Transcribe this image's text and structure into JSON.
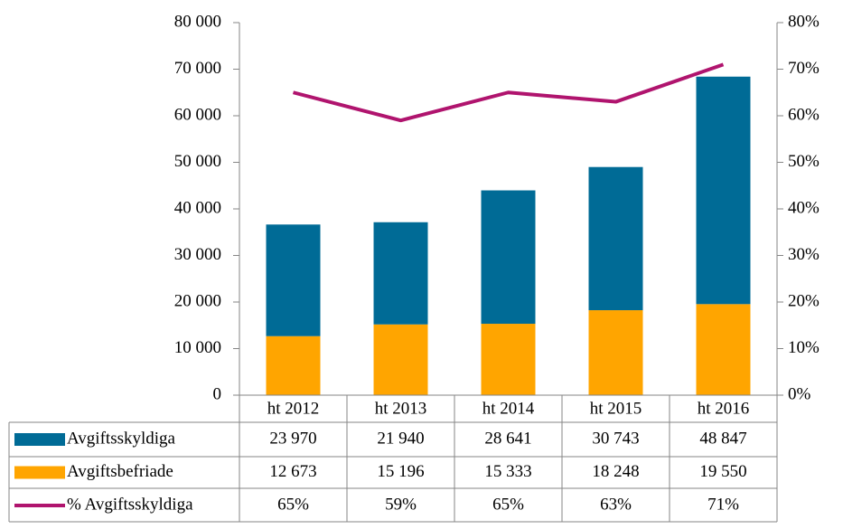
{
  "chart_data": {
    "type": "bar",
    "categories": [
      "ht 2012",
      "ht 2013",
      "ht 2014",
      "ht 2015",
      "ht 2016"
    ],
    "series": [
      {
        "name": "Avgiftsskyldiga",
        "color": "#006b96",
        "values": [
          23970,
          21940,
          28641,
          30743,
          48847
        ],
        "value_labels": [
          "23 970",
          "21 940",
          "28 641",
          "30 743",
          "48 847"
        ]
      },
      {
        "name": "Avgiftsbefriade",
        "color": "#ffa500",
        "values": [
          12673,
          15196,
          15333,
          18248,
          19550
        ],
        "value_labels": [
          "12 673",
          "15 196",
          "15 333",
          "18 248",
          "19 550"
        ]
      },
      {
        "name": "% Avgiftsskyldiga",
        "color": "#b0146e",
        "type": "line",
        "axis": "y2",
        "values": [
          65,
          59,
          65,
          63,
          71
        ],
        "value_labels": [
          "65%",
          "59%",
          "65%",
          "63%",
          "71%"
        ]
      }
    ],
    "ylim": [
      0,
      80000
    ],
    "yticks": [
      0,
      {
        "value": 10000,
        "label": "10 000"
      },
      {
        "value": 20000,
        "label": "20 000"
      },
      {
        "value": 30000,
        "label": "30 000"
      },
      {
        "value": 40000,
        "label": "40 000"
      },
      {
        "value": 50000,
        "label": "50 000"
      },
      {
        "value": 60000,
        "label": "60 000"
      },
      {
        "value": 70000,
        "label": "70 000"
      },
      {
        "value": 80000,
        "label": "80 000"
      }
    ],
    "y2lim": [
      0,
      80
    ],
    "y2ticks": [
      {
        "value": 0,
        "label": "0%"
      },
      {
        "value": 10,
        "label": "10%"
      },
      {
        "value": 20,
        "label": "20%"
      },
      {
        "value": 30,
        "label": "30%"
      },
      {
        "value": 40,
        "label": "40%"
      },
      {
        "value": 50,
        "label": "50%"
      },
      {
        "value": 60,
        "label": "60%"
      },
      {
        "value": 70,
        "label": "70%"
      },
      {
        "value": 80,
        "label": "80%"
      }
    ],
    "grid": false,
    "data_table": true
  }
}
